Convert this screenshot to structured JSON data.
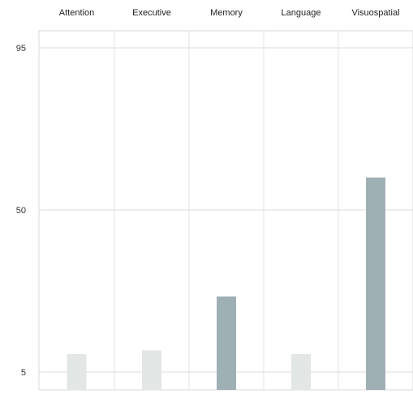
{
  "chart_data": {
    "type": "bar",
    "categories": [
      "Attention",
      "Executive",
      "Memory",
      "Language",
      "Visuospatial"
    ],
    "values": [
      10,
      11,
      26,
      10,
      59
    ],
    "y_ticks": [
      "95",
      "50",
      "5"
    ],
    "y_tick_values": [
      95,
      50,
      5
    ],
    "ylim": [
      2,
      100
    ],
    "grid": true,
    "title": "",
    "xlabel": "",
    "ylabel": "",
    "bar_colors": [
      "#e2e6e5",
      "#e2e6e5",
      "#9fb0b4",
      "#e2e6e5",
      "#9fb0b4"
    ]
  }
}
